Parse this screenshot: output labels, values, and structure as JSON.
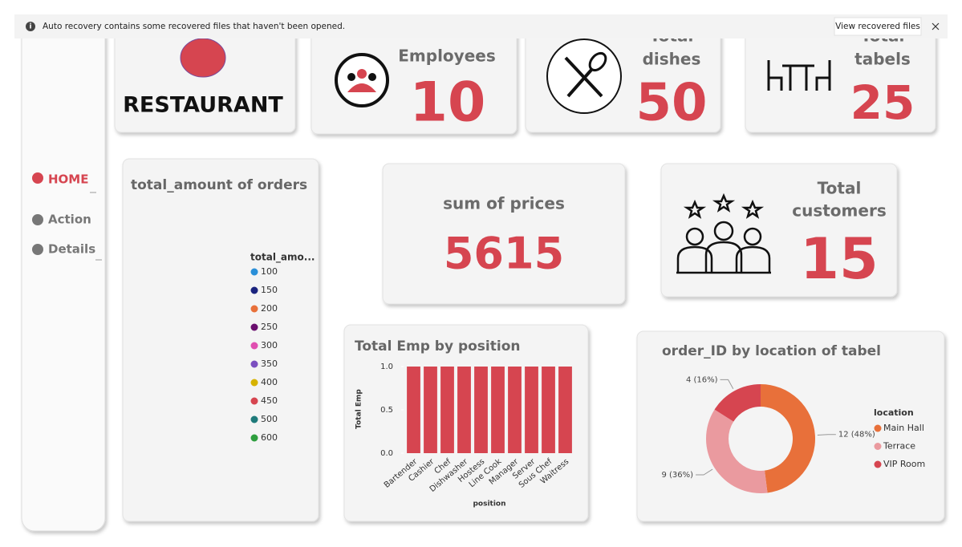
{
  "notification": {
    "message": "Auto recovery contains some recovered files that haven't been opened.",
    "button": "View recovered files"
  },
  "nav": [
    "HOME",
    "Action",
    "Details"
  ],
  "cards": [
    {
      "title": "RESTAURANT"
    },
    {
      "title": "Employees",
      "value": 10
    },
    {
      "title": [
        "Total",
        "dishes"
      ],
      "value": 50
    },
    {
      "title": [
        "Total",
        "tabels"
      ],
      "value": 25
    },
    {
      "title": "sum of prices",
      "value": 5615
    },
    {
      "title": [
        "Total",
        "customers"
      ],
      "value": 15
    }
  ],
  "chart_data": [
    {
      "type": "pie",
      "title": "total_amount of orders",
      "legend_title": "total_amo...",
      "categories": [
        "100",
        "150",
        "200",
        "250",
        "300",
        "350",
        "400",
        "450",
        "500",
        "600"
      ],
      "colors": [
        "#2a8fd8",
        "#1a237e",
        "#e8703a",
        "#6a0f6e",
        "#e04fb0",
        "#7b4fc0",
        "#d6b300",
        "#d64550",
        "#1e7a7a",
        "#2e9e3e"
      ]
    },
    {
      "type": "bar",
      "title": "Total Emp by position",
      "x_label": "position",
      "y_label": "Total Emp",
      "categories": [
        "Bartender",
        "Cashier",
        "Chef",
        "Dishwasher",
        "Hostess",
        "Line Cook",
        "Manager",
        "Server",
        "Sous Chef",
        "Waitress"
      ],
      "values": [
        1,
        1,
        1,
        1,
        1,
        1,
        1,
        1,
        1,
        1
      ],
      "color": "#d64550",
      "ylim": [
        0,
        1
      ],
      "yticks": [
        {
          "value": 0,
          "label": "0.0"
        },
        0.5,
        {
          "value": 1,
          "label": "1.0"
        }
      ]
    },
    {
      "type": "donut",
      "title": "order_ID by location of tabel",
      "legend_title": "location",
      "categories": [
        "Main Hall",
        "Terrace",
        "VIP Room"
      ],
      "values": [
        12,
        9,
        4
      ],
      "value_labels": [
        "12 (48%)",
        "9 (36%)",
        "4 (16%)"
      ],
      "colors": [
        "#e8703a",
        "#ea9a9f",
        "#d64550"
      ]
    }
  ]
}
